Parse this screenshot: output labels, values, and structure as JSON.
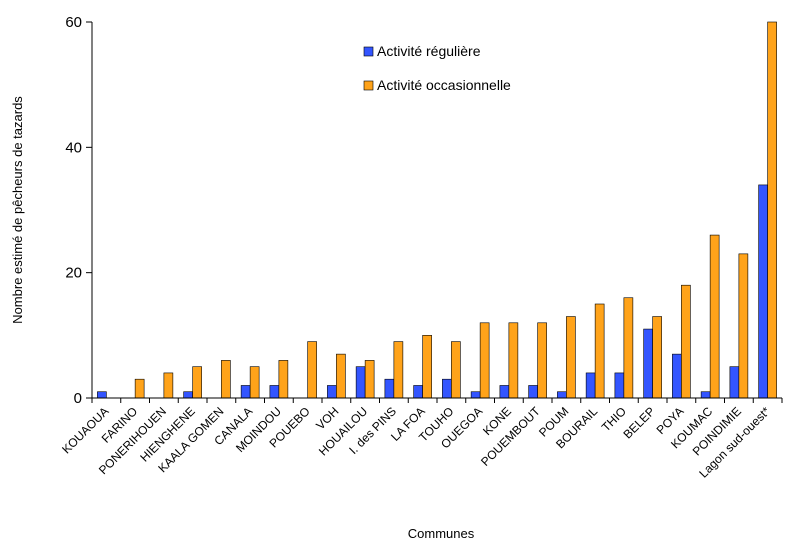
{
  "chart_data": {
    "type": "bar",
    "xlabel": "Communes",
    "ylabel": "Nombre estimé de pêcheurs de tazards",
    "ylim": [
      0,
      60
    ],
    "yticks": [
      "0",
      "20",
      "40",
      "60"
    ],
    "grid": false,
    "legend_position": "top-center",
    "categories": [
      "KOUAOUA",
      "FARINO",
      "PONERIHOUEN",
      "HIENGHENE",
      "KAALA GOMEN",
      "CANALA",
      "MOINDOU",
      "POUEBO",
      "VOH",
      "HOUAILOU",
      "I. des PINS",
      "LA FOA",
      "TOUHO",
      "OUEGOA",
      "KONE",
      "POUEMBOUT",
      "POUM",
      "BOURAIL",
      "THIO",
      "BELEP",
      "POYA",
      "KOUMAC",
      "POINDIMIE",
      "Lagon sud-ouest*"
    ],
    "category_labels": [
      "KOUAOUA",
      "FARINO",
      "PONERIHOUEN",
      "HIENGHENE",
      "KAALA GOMEN",
      "CANALA",
      "MOINDOU",
      "POUEBO",
      "VOH",
      "HOUAILOU",
      "I. des PINS",
      "LA FOA",
      "TOUHO",
      "OUEGOA",
      "KONE",
      "POUEMBOUT",
      "POUM",
      "BOURAIL",
      "THIO",
      "BELEP",
      "POYA",
      "KOUMAC",
      "POINDIMIE",
      "Lagon sud-ouest*"
    ],
    "series": [
      {
        "name": "Activité régulière",
        "color": "#3355ff",
        "values": [
          1,
          0,
          0,
          1,
          0,
          2,
          2,
          0,
          2,
          5,
          3,
          2,
          3,
          1,
          2,
          2,
          1,
          4,
          4,
          11,
          7,
          1,
          5,
          34
        ]
      },
      {
        "name": "Activité occasionnelle",
        "color": "#ffa31a",
        "values": [
          0,
          3,
          4,
          5,
          6,
          5,
          6,
          9,
          7,
          6,
          9,
          10,
          9,
          12,
          12,
          12,
          13,
          15,
          16,
          13,
          18,
          26,
          23,
          60
        ]
      }
    ]
  }
}
